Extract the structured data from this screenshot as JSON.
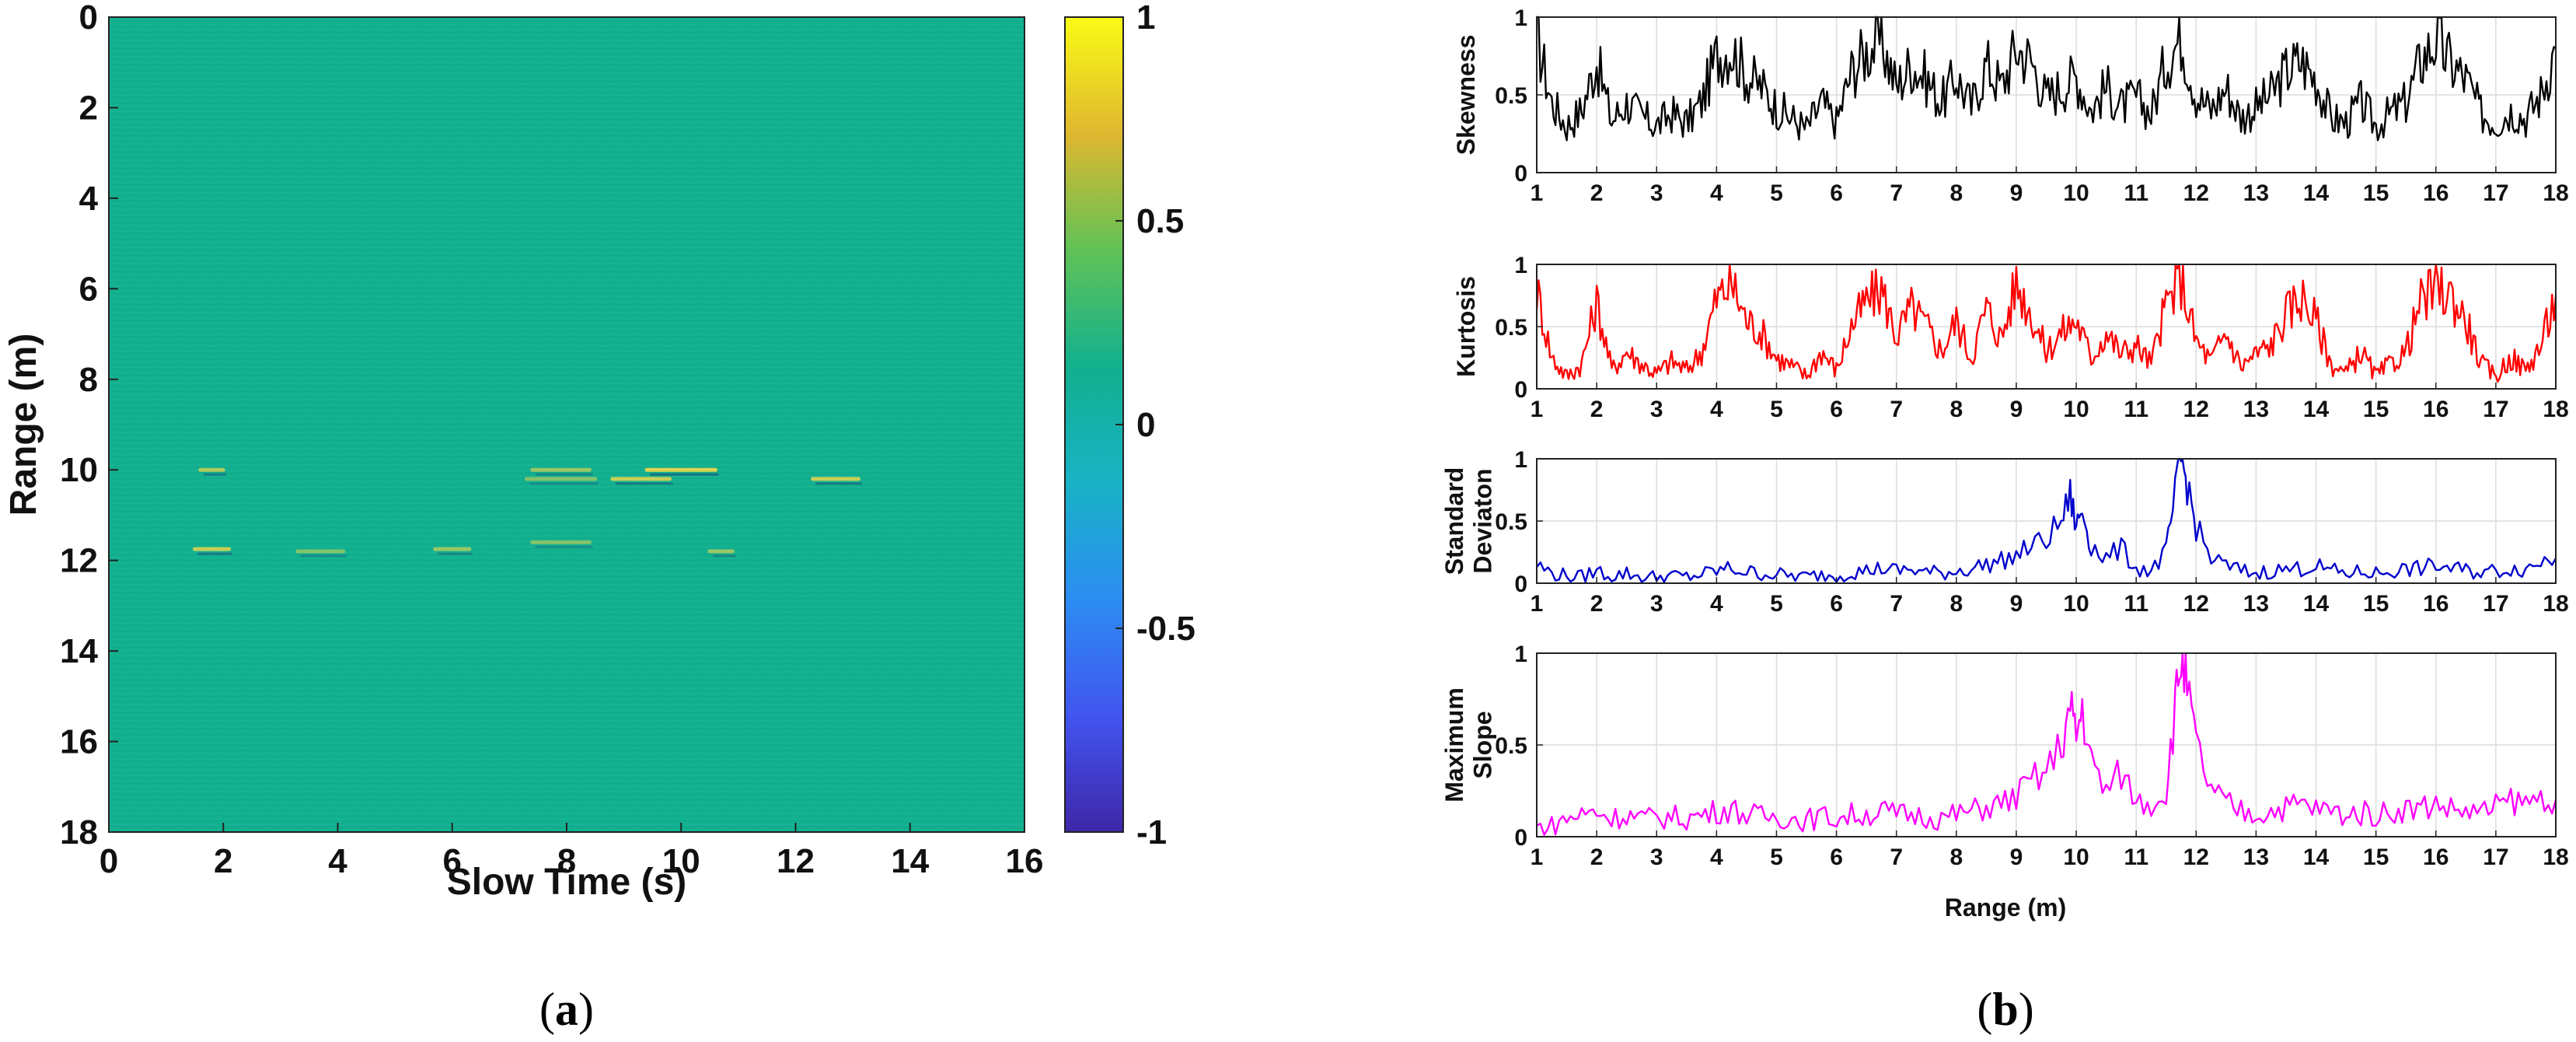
{
  "panel_a": {
    "caption_open": "(",
    "caption_letter": "a",
    "caption_close": ")",
    "colors": {
      "background": "#12B08E",
      "bright": "#F2D84A",
      "dark": "#1F3E7A",
      "colormap": [
        "#3E26A8",
        "#4255F0",
        "#2C8DF2",
        "#18B2C6",
        "#12B08E",
        "#60C256",
        "#E0B730",
        "#F9FB15"
      ]
    }
  },
  "panel_b": {
    "caption_open": "(",
    "caption_letter": "b",
    "caption_close": ")"
  },
  "chart_data": [
    {
      "id": "a",
      "type": "heatmap",
      "title": "",
      "xlabel": "Slow Time (s)",
      "ylabel": "Range (m)",
      "xlim": [
        0,
        16
      ],
      "ylim": [
        0,
        18
      ],
      "y_reversed": true,
      "xticks": [
        "0",
        "2",
        "4",
        "6",
        "8",
        "10",
        "12",
        "14",
        "16"
      ],
      "yticks": [
        "0",
        "2",
        "4",
        "6",
        "8",
        "10",
        "12",
        "14",
        "16",
        "18"
      ],
      "colorbar": {
        "range": [
          -1,
          1
        ],
        "ticks": [
          "1",
          "0.5",
          "0",
          "-0.5",
          "-1"
        ],
        "tick_values": [
          1,
          0.5,
          0,
          -0.5,
          -1
        ]
      },
      "features": [
        {
          "t": 1.8,
          "r": 10.0,
          "len": 0.4,
          "v": 0.7
        },
        {
          "t": 1.8,
          "r": 11.75,
          "len": 0.6,
          "v": 0.8
        },
        {
          "t": 3.7,
          "r": 11.8,
          "len": 0.8,
          "v": 0.5
        },
        {
          "t": 6.0,
          "r": 11.75,
          "len": 0.6,
          "v": 0.6
        },
        {
          "t": 7.9,
          "r": 10.0,
          "len": 1.0,
          "v": 0.6
        },
        {
          "t": 7.9,
          "r": 10.2,
          "len": 1.2,
          "v": 0.5
        },
        {
          "t": 7.9,
          "r": 11.6,
          "len": 1.0,
          "v": 0.5
        },
        {
          "t": 9.3,
          "r": 10.2,
          "len": 1.0,
          "v": 0.8
        },
        {
          "t": 10.0,
          "r": 10.0,
          "len": 1.2,
          "v": 0.9
        },
        {
          "t": 10.7,
          "r": 11.8,
          "len": 0.4,
          "v": 0.6
        },
        {
          "t": 12.7,
          "r": 10.2,
          "len": 0.8,
          "v": 0.8
        }
      ]
    },
    {
      "id": "b1",
      "type": "line",
      "ylabel": "Skewness",
      "color": "#000000",
      "xlim": [
        1,
        18
      ],
      "ylim": [
        0,
        1
      ],
      "xticks": [
        "1",
        "2",
        "3",
        "4",
        "5",
        "6",
        "7",
        "8",
        "9",
        "10",
        "11",
        "12",
        "13",
        "14",
        "15",
        "16",
        "17",
        "18"
      ],
      "yticks": [
        "0",
        "0.5",
        "1"
      ],
      "x": [
        1.0,
        1.25,
        1.5,
        1.75,
        2.0,
        2.25,
        2.5,
        2.75,
        3.0,
        3.25,
        3.5,
        3.75,
        4.0,
        4.25,
        4.5,
        4.75,
        5.0,
        5.25,
        5.5,
        5.75,
        6.0,
        6.25,
        6.5,
        6.75,
        7.0,
        7.25,
        7.5,
        7.75,
        8.0,
        8.25,
        8.5,
        8.75,
        9.0,
        9.25,
        9.5,
        9.75,
        10.0,
        10.25,
        10.5,
        10.75,
        11.0,
        11.25,
        11.5,
        11.75,
        12.0,
        12.25,
        12.5,
        12.75,
        13.0,
        13.25,
        13.5,
        13.75,
        14.0,
        14.25,
        14.5,
        14.75,
        15.0,
        15.25,
        15.5,
        15.75,
        16.0,
        16.25,
        16.5,
        16.75,
        17.0,
        17.25,
        17.5,
        17.75,
        18.0
      ],
      "values": [
        0.88,
        0.45,
        0.3,
        0.4,
        0.72,
        0.33,
        0.45,
        0.36,
        0.3,
        0.38,
        0.32,
        0.45,
        0.75,
        0.8,
        0.62,
        0.55,
        0.42,
        0.35,
        0.28,
        0.45,
        0.32,
        0.65,
        0.78,
        0.85,
        0.55,
        0.7,
        0.6,
        0.45,
        0.62,
        0.42,
        0.7,
        0.55,
        0.8,
        0.72,
        0.48,
        0.55,
        0.62,
        0.4,
        0.55,
        0.42,
        0.48,
        0.38,
        0.72,
        0.88,
        0.5,
        0.4,
        0.55,
        0.35,
        0.42,
        0.5,
        0.65,
        0.72,
        0.6,
        0.35,
        0.32,
        0.45,
        0.3,
        0.38,
        0.45,
        0.72,
        0.85,
        0.7,
        0.6,
        0.38,
        0.32,
        0.4,
        0.35,
        0.5,
        0.8
      ]
    },
    {
      "id": "b2",
      "type": "line",
      "ylabel": "Kurtosis",
      "color": "#FF0000",
      "xlim": [
        1,
        18
      ],
      "ylim": [
        0,
        1
      ],
      "xticks": [
        "1",
        "2",
        "3",
        "4",
        "5",
        "6",
        "7",
        "8",
        "9",
        "10",
        "11",
        "12",
        "13",
        "14",
        "15",
        "16",
        "17",
        "18"
      ],
      "yticks": [
        "0",
        "0.5",
        "1"
      ],
      "x": [
        1.0,
        1.25,
        1.5,
        1.75,
        2.0,
        2.25,
        2.5,
        2.75,
        3.0,
        3.25,
        3.5,
        3.75,
        4.0,
        4.25,
        4.5,
        4.75,
        5.0,
        5.25,
        5.5,
        5.75,
        6.0,
        6.25,
        6.5,
        6.75,
        7.0,
        7.25,
        7.5,
        7.75,
        8.0,
        8.25,
        8.5,
        8.75,
        9.0,
        9.25,
        9.5,
        9.75,
        10.0,
        10.25,
        10.5,
        10.75,
        11.0,
        11.25,
        11.5,
        11.75,
        12.0,
        12.25,
        12.5,
        12.75,
        13.0,
        13.25,
        13.5,
        13.75,
        14.0,
        14.25,
        14.5,
        14.75,
        15.0,
        15.25,
        15.5,
        15.75,
        16.0,
        16.25,
        16.5,
        16.75,
        17.0,
        17.25,
        17.5,
        17.75,
        18.0
      ],
      "values": [
        0.8,
        0.25,
        0.1,
        0.2,
        0.7,
        0.15,
        0.3,
        0.2,
        0.12,
        0.22,
        0.15,
        0.3,
        0.72,
        0.85,
        0.55,
        0.45,
        0.25,
        0.18,
        0.1,
        0.3,
        0.15,
        0.5,
        0.7,
        0.8,
        0.42,
        0.65,
        0.5,
        0.3,
        0.55,
        0.25,
        0.65,
        0.4,
        0.85,
        0.6,
        0.3,
        0.45,
        0.55,
        0.25,
        0.45,
        0.28,
        0.35,
        0.2,
        0.68,
        0.88,
        0.38,
        0.22,
        0.45,
        0.18,
        0.28,
        0.35,
        0.6,
        0.75,
        0.55,
        0.2,
        0.12,
        0.3,
        0.1,
        0.2,
        0.3,
        0.7,
        0.8,
        0.75,
        0.55,
        0.2,
        0.1,
        0.25,
        0.15,
        0.35,
        0.75
      ]
    },
    {
      "id": "b3",
      "type": "line",
      "ylabel": "Standard Deviaton",
      "ylabel_lines": [
        "Standard",
        "Deviaton"
      ],
      "color": "#0000CC",
      "xlim": [
        1,
        18
      ],
      "ylim": [
        0,
        1
      ],
      "xticks": [
        "1",
        "2",
        "3",
        "4",
        "5",
        "6",
        "7",
        "8",
        "9",
        "10",
        "11",
        "12",
        "13",
        "14",
        "15",
        "16",
        "17",
        "18"
      ],
      "yticks": [
        "0",
        "0.5",
        "1"
      ],
      "x": [
        1.0,
        1.25,
        1.5,
        1.75,
        2.0,
        2.25,
        2.5,
        2.75,
        3.0,
        3.25,
        3.5,
        3.75,
        4.0,
        4.25,
        4.5,
        4.75,
        5.0,
        5.25,
        5.5,
        5.75,
        6.0,
        6.25,
        6.5,
        6.75,
        7.0,
        7.25,
        7.5,
        7.75,
        8.0,
        8.25,
        8.5,
        8.75,
        9.0,
        9.25,
        9.5,
        9.75,
        9.9,
        10.0,
        10.1,
        10.25,
        10.5,
        10.75,
        11.0,
        11.25,
        11.5,
        11.65,
        11.75,
        11.85,
        12.0,
        12.25,
        12.5,
        12.75,
        13.0,
        13.25,
        13.5,
        13.75,
        14.0,
        14.25,
        14.5,
        14.75,
        15.0,
        15.25,
        15.5,
        15.75,
        16.0,
        16.25,
        16.5,
        16.75,
        17.0,
        17.25,
        17.5,
        17.75,
        18.0
      ],
      "values": [
        0.15,
        0.08,
        0.06,
        0.05,
        0.1,
        0.06,
        0.08,
        0.05,
        0.05,
        0.06,
        0.05,
        0.07,
        0.1,
        0.12,
        0.09,
        0.08,
        0.07,
        0.06,
        0.05,
        0.07,
        0.06,
        0.09,
        0.1,
        0.12,
        0.1,
        0.11,
        0.09,
        0.08,
        0.1,
        0.12,
        0.15,
        0.18,
        0.22,
        0.3,
        0.35,
        0.5,
        0.7,
        0.45,
        0.6,
        0.3,
        0.2,
        0.28,
        0.12,
        0.1,
        0.25,
        0.7,
        1.0,
        0.8,
        0.45,
        0.2,
        0.14,
        0.1,
        0.08,
        0.1,
        0.11,
        0.12,
        0.14,
        0.1,
        0.08,
        0.09,
        0.08,
        0.1,
        0.11,
        0.12,
        0.14,
        0.12,
        0.1,
        0.09,
        0.1,
        0.12,
        0.11,
        0.18,
        0.2
      ]
    },
    {
      "id": "b4",
      "type": "line",
      "ylabel": "Maximum Slope",
      "ylabel_lines": [
        "Maximum",
        "Slope"
      ],
      "color": "#FF00FF",
      "xlabel": "Range (m)",
      "xlim": [
        1,
        18
      ],
      "ylim": [
        0,
        1
      ],
      "xticks": [
        "1",
        "2",
        "3",
        "4",
        "5",
        "6",
        "7",
        "8",
        "9",
        "10",
        "11",
        "12",
        "13",
        "14",
        "15",
        "16",
        "17",
        "18"
      ],
      "yticks": [
        "0",
        "0.5",
        "1"
      ],
      "x": [
        1.0,
        1.25,
        1.5,
        1.75,
        2.0,
        2.25,
        2.5,
        2.75,
        3.0,
        3.25,
        3.5,
        3.75,
        4.0,
        4.25,
        4.5,
        4.75,
        5.0,
        5.25,
        5.5,
        5.75,
        6.0,
        6.25,
        6.5,
        6.75,
        7.0,
        7.25,
        7.5,
        7.75,
        8.0,
        8.25,
        8.5,
        8.75,
        9.0,
        9.25,
        9.5,
        9.75,
        9.9,
        10.0,
        10.1,
        10.25,
        10.5,
        10.75,
        11.0,
        11.25,
        11.5,
        11.65,
        11.75,
        11.85,
        12.0,
        12.25,
        12.5,
        12.75,
        13.0,
        13.25,
        13.5,
        13.75,
        14.0,
        14.25,
        14.5,
        14.75,
        15.0,
        15.25,
        15.5,
        15.75,
        16.0,
        16.25,
        16.5,
        16.75,
        17.0,
        17.25,
        17.5,
        17.75,
        18.0
      ],
      "values": [
        0.05,
        0.06,
        0.1,
        0.12,
        0.14,
        0.1,
        0.12,
        0.1,
        0.1,
        0.11,
        0.1,
        0.12,
        0.14,
        0.15,
        0.12,
        0.11,
        0.11,
        0.1,
        0.09,
        0.11,
        0.1,
        0.12,
        0.12,
        0.14,
        0.12,
        0.12,
        0.11,
        0.1,
        0.12,
        0.14,
        0.16,
        0.18,
        0.22,
        0.3,
        0.35,
        0.5,
        0.7,
        0.55,
        0.7,
        0.4,
        0.25,
        0.35,
        0.2,
        0.18,
        0.25,
        0.7,
        1.0,
        0.8,
        0.5,
        0.25,
        0.18,
        0.14,
        0.12,
        0.14,
        0.16,
        0.18,
        0.15,
        0.14,
        0.12,
        0.13,
        0.12,
        0.14,
        0.15,
        0.16,
        0.18,
        0.15,
        0.14,
        0.13,
        0.16,
        0.2,
        0.18,
        0.22,
        0.2
      ]
    }
  ]
}
